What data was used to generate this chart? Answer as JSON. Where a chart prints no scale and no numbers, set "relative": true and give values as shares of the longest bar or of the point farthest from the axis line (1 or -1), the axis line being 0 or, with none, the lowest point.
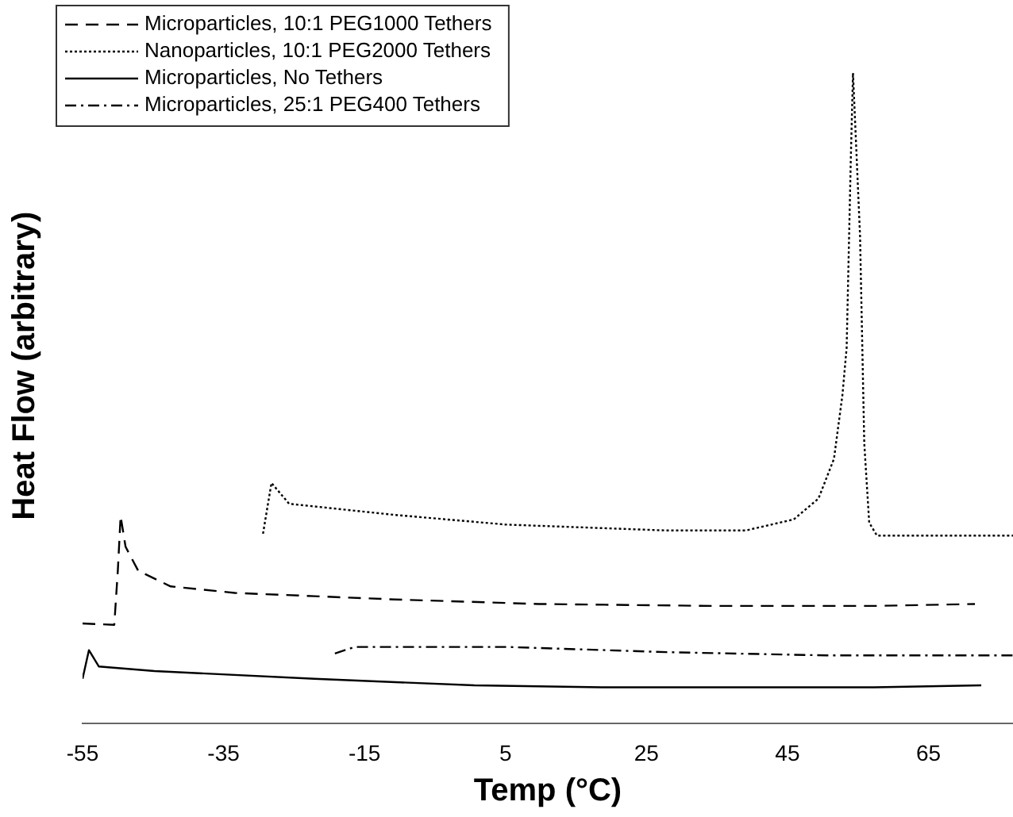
{
  "chart_data": {
    "type": "line",
    "xlabel": "Temp (°C)",
    "ylabel": "Heat Flow (arbitrary)",
    "relative": true,
    "xlim": [
      -55,
      77
    ],
    "xticks": [
      -55,
      -35,
      -15,
      5,
      25,
      45,
      65
    ],
    "grid": false,
    "legend": "top left",
    "marker": "none",
    "series": [
      {
        "name": "Microparticles, 10:1 PEG1000 Tethers",
        "color": "#000000",
        "line_style": "dashed",
        "x": [
          -55,
          -50.5,
          -50,
          -49.6,
          -48.9,
          -47.1,
          -42.5,
          -33.4,
          -22.1,
          -10.8,
          9.7,
          34.6,
          57.3,
          71.6
        ],
        "values": [
          0.154,
          0.152,
          0.235,
          0.319,
          0.272,
          0.235,
          0.211,
          0.201,
          0.196,
          0.191,
          0.184,
          0.181,
          0.181,
          0.184
        ]
      },
      {
        "name": "Nanoparticles, 10:1 PEG2000 Tethers",
        "color": "#000000",
        "line_style": "dotted",
        "x": [
          -29.4,
          -28.2,
          -25.7,
          -10.8,
          5.1,
          27.8,
          39.1,
          45.9,
          49.4,
          51.6,
          52.8,
          53.4,
          54,
          54.3,
          55.3,
          55.9,
          56.6,
          57.7,
          68.6,
          77
        ],
        "values": [
          0.292,
          0.37,
          0.338,
          0.321,
          0.306,
          0.297,
          0.297,
          0.314,
          0.346,
          0.407,
          0.505,
          0.578,
          0.873,
          1,
          0.75,
          0.431,
          0.309,
          0.289,
          0.289,
          0.289
        ]
      },
      {
        "name": "Microparticles, No Tethers",
        "color": "#000000",
        "line_style": "solid",
        "x": [
          -55,
          -54.1,
          -52.7,
          -44.8,
          -22.1,
          0.6,
          18.7,
          57.3,
          72.5
        ],
        "values": [
          0.069,
          0.113,
          0.088,
          0.081,
          0.069,
          0.059,
          0.056,
          0.056,
          0.059
        ]
      },
      {
        "name": "Microparticles, 25:1 PEG400 Tethers",
        "color": "#000000",
        "line_style": "dashdot",
        "x": [
          -19.2,
          -16.4,
          5.1,
          27.8,
          50.5,
          77
        ],
        "values": [
          0.108,
          0.118,
          0.118,
          0.11,
          0.105,
          0.105
        ]
      }
    ]
  }
}
